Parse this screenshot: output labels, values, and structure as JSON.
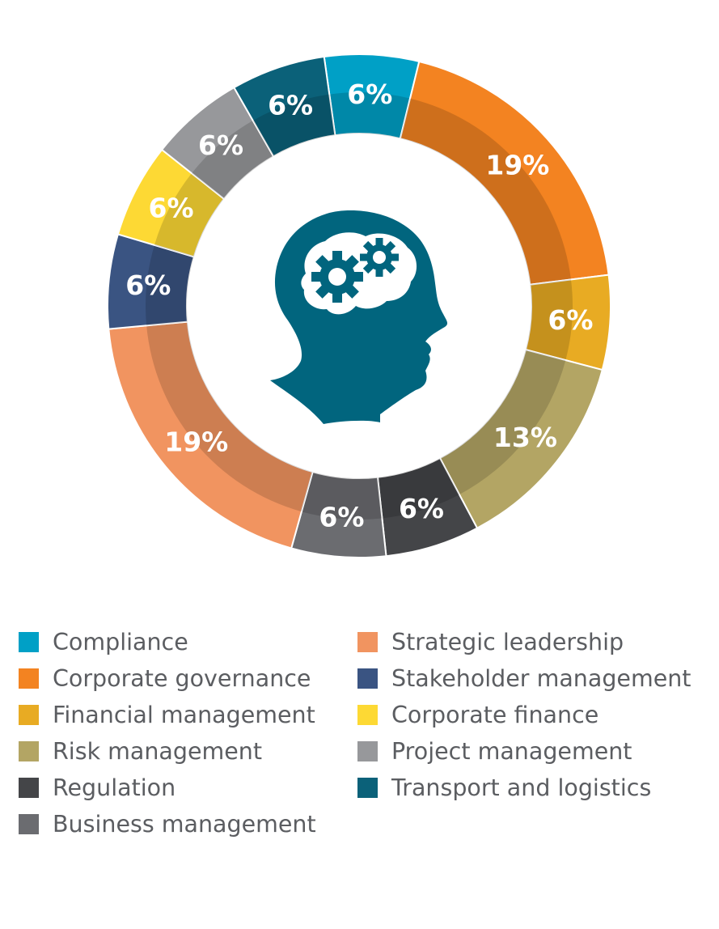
{
  "chart_data": {
    "type": "pie",
    "title": "",
    "slices": [
      {
        "label": "Compliance",
        "value": 6,
        "display": "6%",
        "color": "#00a0c6"
      },
      {
        "label": "Corporate governance",
        "value": 19,
        "display": "19%",
        "color": "#f38321"
      },
      {
        "label": "Financial management",
        "value": 6,
        "display": "6%",
        "color": "#e8ab23"
      },
      {
        "label": "Risk management",
        "value": 13,
        "display": "13%",
        "color": "#b3a564"
      },
      {
        "label": "Regulation",
        "value": 6,
        "display": "6%",
        "color": "#444548"
      },
      {
        "label": "Business management",
        "value": 6,
        "display": "6%",
        "color": "#6b6c70"
      },
      {
        "label": "Strategic leadership",
        "value": 19,
        "display": "19%",
        "color": "#f19460"
      },
      {
        "label": "Stakeholder management",
        "value": 6,
        "display": "6%",
        "color": "#3a5482"
      },
      {
        "label": "Corporate finance",
        "value": 6,
        "display": "6%",
        "color": "#fdd934"
      },
      {
        "label": "Project management",
        "value": 6,
        "display": "6%",
        "color": "#97989b"
      },
      {
        "label": "Transport and logistics",
        "value": 6,
        "display": "6%",
        "color": "#0b6179"
      }
    ],
    "legend_position": "bottom",
    "center_icon": "head-with-gears-icon",
    "icon_color": "#01657e"
  }
}
